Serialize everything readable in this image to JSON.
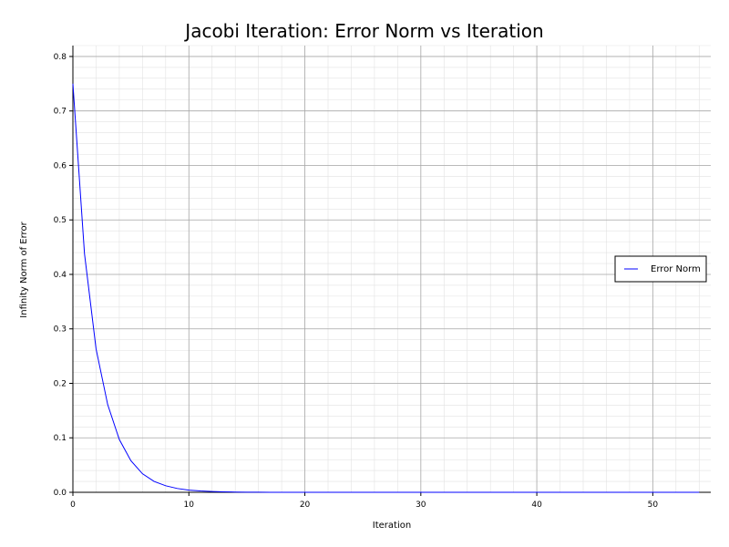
{
  "chart_data": {
    "type": "line",
    "title": "Jacobi Iteration: Error Norm vs Iteration",
    "xlabel": "Iteration",
    "ylabel": "Infinity Norm of Error",
    "xlim": [
      0,
      55
    ],
    "ylim": [
      0,
      0.82
    ],
    "xticks": [
      0,
      10,
      20,
      30,
      40,
      50
    ],
    "yticks": [
      0.0,
      0.1,
      0.2,
      0.3,
      0.4,
      0.5,
      0.6,
      0.7,
      0.8
    ],
    "grid": true,
    "legend_position": "right",
    "series": [
      {
        "name": "Error Norm",
        "color": "#0000ff",
        "x": [
          0,
          1,
          2,
          3,
          4,
          5,
          6,
          7,
          8,
          9,
          10,
          11,
          12,
          13,
          14,
          15,
          16,
          17,
          18,
          19,
          20,
          21,
          22,
          23,
          24,
          25,
          26,
          27,
          28,
          29,
          30,
          31,
          32,
          33,
          34,
          35,
          36,
          37,
          38,
          39,
          40,
          41,
          42,
          43,
          44,
          45,
          46,
          47,
          48,
          49,
          50,
          51,
          52,
          53,
          54
        ],
        "y": [
          0.75,
          0.438,
          0.263,
          0.161,
          0.097,
          0.058,
          0.034,
          0.02,
          0.012,
          0.007,
          0.004,
          0.0025,
          0.0015,
          0.0009,
          0.0005,
          0.0003,
          0.0002,
          0.0001,
          6e-05,
          4e-05,
          2e-05,
          1e-05,
          8e-06,
          5e-06,
          3e-06,
          2e-06,
          1e-06,
          6e-07,
          4e-07,
          2e-07,
          1e-07,
          1e-07,
          5e-08,
          3e-08,
          2e-08,
          1e-08,
          1e-08,
          0,
          0,
          0,
          0,
          0,
          0,
          0,
          0,
          0,
          0,
          0,
          0,
          0,
          0,
          0,
          0,
          0,
          0
        ]
      }
    ]
  }
}
